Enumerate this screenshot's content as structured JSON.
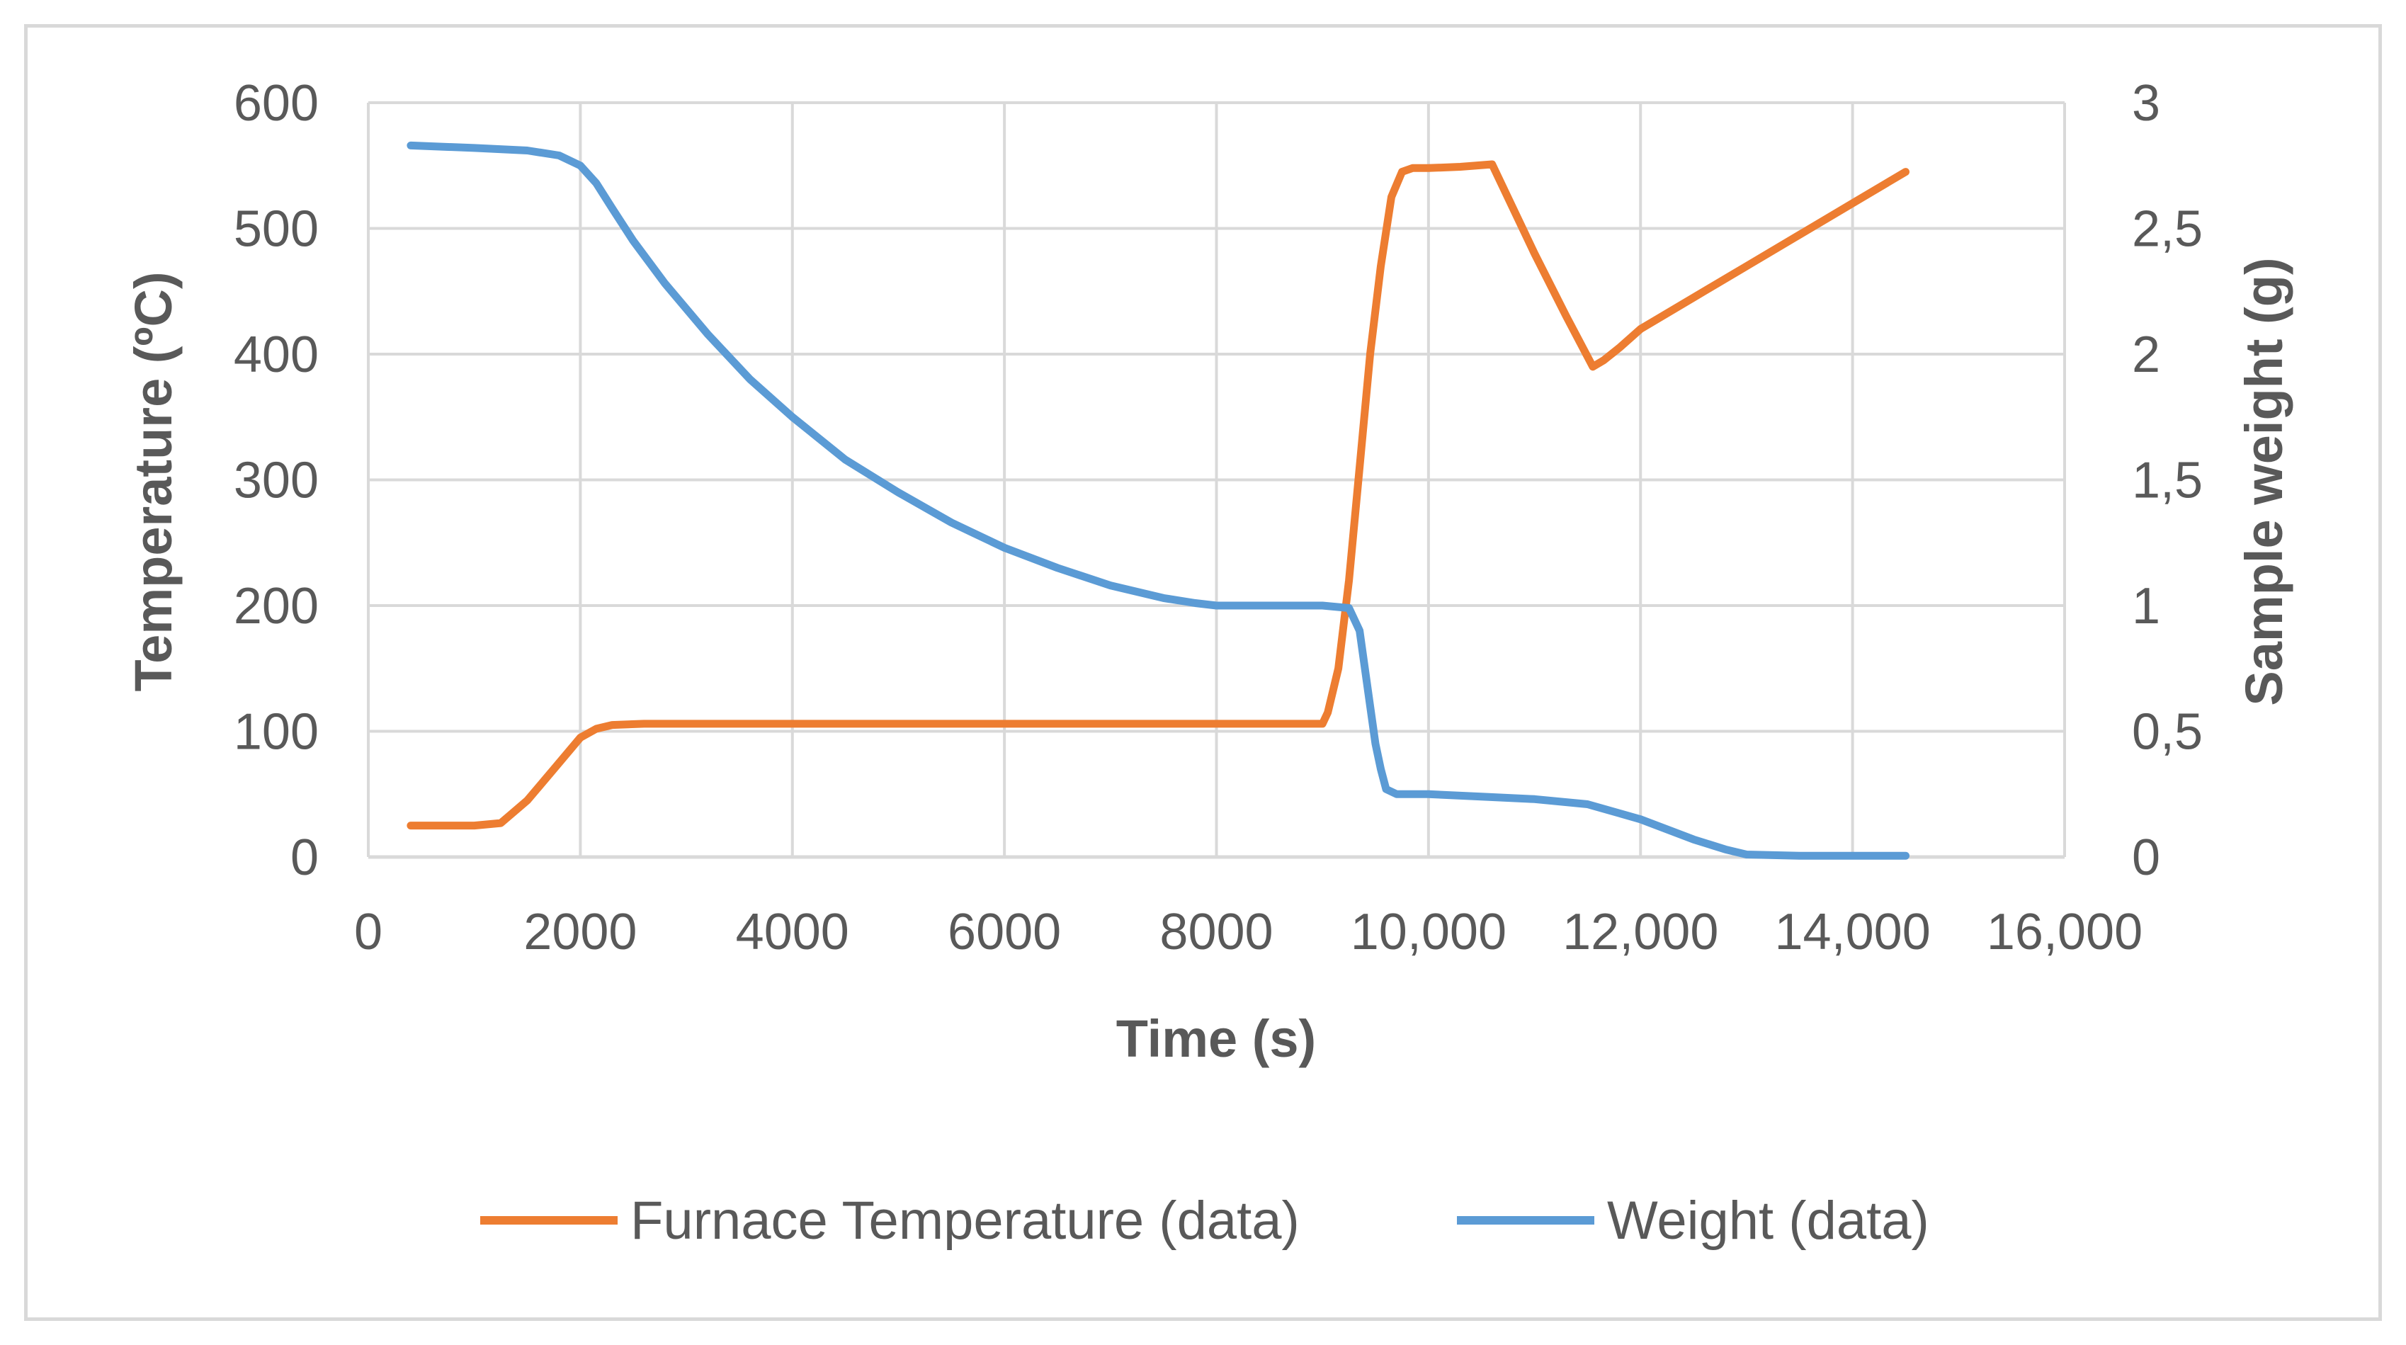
{
  "chart_data": {
    "type": "line",
    "title": "",
    "xlabel": "Time (s)",
    "ylabel": "Temperature (ºC)",
    "y2label": "Sample weight (g)",
    "xlim": [
      0,
      16000
    ],
    "ylim": [
      0,
      600
    ],
    "y2lim": [
      0,
      3
    ],
    "x_ticks": [
      0,
      2000,
      4000,
      6000,
      8000,
      10000,
      12000,
      14000,
      16000
    ],
    "x_tick_labels": [
      "0",
      "2000",
      "4000",
      "6000",
      "8000",
      "10,000",
      "12,000",
      "14,000",
      "16,000"
    ],
    "y_ticks": [
      0,
      100,
      200,
      300,
      400,
      500,
      600
    ],
    "y_tick_labels": [
      "0",
      "100",
      "200",
      "300",
      "400",
      "500",
      "600"
    ],
    "y2_ticks": [
      0,
      0.5,
      1,
      1.5,
      2,
      2.5,
      3
    ],
    "y2_tick_labels": [
      "0",
      "0,5",
      "1",
      "1,5",
      "2",
      "2,5",
      "3"
    ],
    "grid": true,
    "legend_position": "bottom",
    "series": [
      {
        "name": "Furnace Temperature (data)",
        "axis": "left",
        "color": "#ed7d31",
        "x": [
          400,
          1000,
          1250,
          1500,
          1750,
          2000,
          2150,
          2300,
          2600,
          3000,
          5000,
          7000,
          8000,
          9000,
          9050,
          9150,
          9250,
          9350,
          9450,
          9550,
          9650,
          9750,
          9850,
          10000,
          10300,
          10600,
          11000,
          11300,
          11550,
          11650,
          11800,
          12000,
          12500,
          13000,
          13500,
          14000,
          14500
        ],
        "values": [
          25,
          25,
          27,
          45,
          70,
          95,
          102,
          105,
          106,
          106,
          106,
          106,
          106,
          106,
          115,
          150,
          220,
          310,
          400,
          470,
          525,
          545,
          548,
          548,
          549,
          551,
          480,
          430,
          390,
          395,
          405,
          420,
          445,
          470,
          495,
          520,
          545
        ]
      },
      {
        "name": "Weight (data)",
        "axis": "right",
        "color": "#5b9bd5",
        "x": [
          400,
          1000,
          1500,
          1800,
          2000,
          2150,
          2300,
          2500,
          2800,
          3200,
          3600,
          4000,
          4500,
          5000,
          5500,
          6000,
          6500,
          7000,
          7500,
          7800,
          8000,
          9000,
          9250,
          9350,
          9450,
          9500,
          9550,
          9600,
          9700,
          10000,
          10500,
          11000,
          11500,
          12000,
          12500,
          12800,
          13000,
          13500,
          14000,
          14500
        ],
        "values": [
          2.83,
          2.82,
          2.81,
          2.79,
          2.75,
          2.68,
          2.58,
          2.45,
          2.28,
          2.08,
          1.9,
          1.75,
          1.58,
          1.45,
          1.33,
          1.23,
          1.15,
          1.08,
          1.03,
          1.01,
          1.0,
          1.0,
          0.99,
          0.9,
          0.6,
          0.45,
          0.35,
          0.27,
          0.25,
          0.25,
          0.24,
          0.23,
          0.21,
          0.15,
          0.07,
          0.03,
          0.01,
          0.005,
          0.005,
          0.005
        ]
      }
    ]
  }
}
